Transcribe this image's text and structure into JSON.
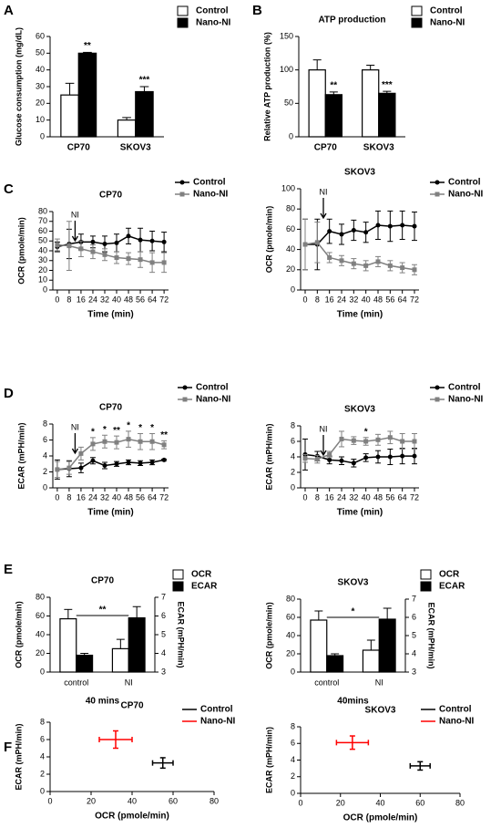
{
  "chart_data": [
    {
      "type": "bar",
      "panel": "A",
      "ylabel": "Glucose consumption (mg/dL)",
      "categories": [
        "CP70",
        "SKOV3"
      ],
      "series": [
        {
          "name": "Control",
          "color": "#ffffff",
          "values": [
            25,
            10
          ],
          "errors": [
            7,
            1.5
          ],
          "annotations": [
            null,
            null
          ]
        },
        {
          "name": "Nano-NI",
          "color": "#000000",
          "values": [
            50,
            27
          ],
          "errors": [
            0.5,
            3
          ],
          "annotations": [
            "**",
            "***"
          ]
        }
      ],
      "ylim": [
        0,
        60
      ],
      "yticks": [
        0,
        10,
        20,
        30,
        40,
        50,
        60
      ]
    },
    {
      "type": "bar",
      "panel": "B",
      "title": "ATP production",
      "ylabel": "Relative ATP production (%)",
      "categories": [
        "CP70",
        "SKOV3"
      ],
      "series": [
        {
          "name": "Control",
          "color": "#ffffff",
          "values": [
            100,
            100
          ],
          "errors": [
            15,
            7
          ],
          "annotations": [
            null,
            null
          ]
        },
        {
          "name": "Nano-NI",
          "color": "#000000",
          "values": [
            63,
            65
          ],
          "errors": [
            4,
            3
          ],
          "annotations": [
            "**",
            "***"
          ]
        }
      ],
      "ylim": [
        0,
        150
      ],
      "yticks": [
        0,
        50,
        100,
        150
      ]
    },
    {
      "type": "line",
      "panel": "C",
      "title": "CP70",
      "xlabel": "Time (min)",
      "ylabel": "OCR (pmole/min)",
      "x": [
        0,
        8,
        16,
        24,
        32,
        40,
        48,
        56,
        64,
        72
      ],
      "annotation": {
        "text": "NI",
        "x": 12
      },
      "series": [
        {
          "name": "Control",
          "color": "#000000",
          "marker": "circle",
          "values": [
            44,
            47,
            49,
            49,
            47,
            48,
            55,
            51,
            50,
            49
          ],
          "errors": [
            5,
            15,
            8,
            6,
            8,
            9,
            8,
            12,
            10,
            10
          ]
        },
        {
          "name": "Nano-NI",
          "color": "#808080",
          "marker": "square",
          "values": [
            46,
            45,
            42,
            39,
            36,
            33,
            32,
            31,
            28,
            28
          ],
          "errors": [
            6,
            25,
            8,
            7,
            6,
            6,
            6,
            8,
            10,
            10
          ]
        }
      ],
      "xlim": [
        -3,
        75
      ],
      "xticks": [
        0,
        8,
        16,
        24,
        32,
        40,
        48,
        56,
        64,
        72
      ],
      "ylim": [
        0,
        80
      ],
      "yticks": [
        0,
        10,
        20,
        30,
        40,
        50,
        60,
        70,
        80
      ]
    },
    {
      "type": "line",
      "title": "SKOV3",
      "xlabel": "Time (min)",
      "ylabel": "OCR (pmole/min)",
      "x": [
        0,
        8,
        16,
        24,
        32,
        40,
        48,
        56,
        64,
        72
      ],
      "annotation": {
        "text": "NI",
        "x": 12
      },
      "series": [
        {
          "name": "Control",
          "color": "#000000",
          "marker": "circle",
          "values": [
            45,
            45,
            58,
            55,
            59,
            57,
            64,
            63,
            64,
            63
          ],
          "errors": [
            25,
            25,
            12,
            10,
            10,
            10,
            14,
            15,
            14,
            14
          ]
        },
        {
          "name": "Nano-NI",
          "color": "#808080",
          "marker": "square",
          "values": [
            45,
            47,
            32,
            29,
            26,
            24,
            28,
            24,
            22,
            20
          ],
          "errors": [
            25,
            20,
            5,
            5,
            5,
            5,
            5,
            5,
            5,
            5
          ]
        }
      ],
      "xlim": [
        -3,
        75
      ],
      "xticks": [
        0,
        8,
        16,
        24,
        32,
        40,
        48,
        56,
        64,
        72
      ],
      "ylim": [
        0,
        100
      ],
      "yticks": [
        0,
        20,
        40,
        60,
        80,
        100
      ]
    },
    {
      "type": "line",
      "panel": "D",
      "title": "CP70",
      "xlabel": "Time (min)",
      "ylabel": "ECAR (mPH/min)",
      "x": [
        0,
        8,
        16,
        24,
        32,
        40,
        48,
        56,
        64,
        72
      ],
      "annotation": {
        "text": "NI",
        "x": 12
      },
      "series": [
        {
          "name": "Control",
          "color": "#000000",
          "marker": "circle",
          "values": [
            2.3,
            2.4,
            2.5,
            3.4,
            2.8,
            3.0,
            3.2,
            3.1,
            3.2,
            3.5
          ],
          "errors": [
            1.2,
            1.0,
            0.6,
            0.4,
            0.4,
            0.3,
            0.3,
            0.3,
            0.3,
            0.1
          ],
          "annotations": [
            null,
            null,
            null,
            null,
            null,
            null,
            null,
            null,
            null,
            null
          ]
        },
        {
          "name": "Nano-NI",
          "color": "#808080",
          "marker": "square",
          "values": [
            2.3,
            2.5,
            4.3,
            5.5,
            5.8,
            5.7,
            6.1,
            5.8,
            5.8,
            5.4
          ],
          "errors": [
            1.0,
            0.8,
            0.8,
            0.8,
            0.8,
            0.8,
            1.0,
            1.0,
            1.0,
            0.5
          ],
          "annotations": [
            null,
            null,
            null,
            "*",
            "*",
            "**",
            "*",
            "*",
            "*",
            "**"
          ]
        }
      ],
      "xlim": [
        -3,
        75
      ],
      "xticks": [
        0,
        8,
        16,
        24,
        32,
        40,
        48,
        56,
        64,
        72
      ],
      "ylim": [
        0,
        8
      ],
      "yticks": [
        0,
        2,
        4,
        6,
        8
      ]
    },
    {
      "type": "line",
      "title": "SKOV3",
      "xlabel": "Time (min)",
      "ylabel": "ECAR (mPH/min)",
      "x": [
        0,
        8,
        16,
        24,
        32,
        40,
        48,
        56,
        64,
        72
      ],
      "annotation": {
        "text": "NI",
        "x": 12
      },
      "series": [
        {
          "name": "Control",
          "color": "#000000",
          "marker": "circle",
          "values": [
            4.3,
            4.1,
            3.6,
            3.5,
            3.2,
            3.9,
            4.0,
            4.0,
            4.1,
            4.1
          ],
          "errors": [
            2.0,
            0.6,
            0.5,
            0.5,
            0.5,
            0.5,
            0.8,
            1.0,
            1.0,
            1.0
          ],
          "annotations": [
            null,
            null,
            null,
            null,
            null,
            null,
            null,
            null,
            null,
            null
          ]
        },
        {
          "name": "Nano-NI",
          "color": "#808080",
          "marker": "square",
          "values": [
            3.8,
            3.7,
            4.3,
            6.3,
            6.1,
            6.0,
            6.2,
            6.5,
            6.0,
            6.0
          ],
          "errors": [
            0.5,
            0.5,
            0.4,
            1.0,
            0.5,
            0.5,
            0.7,
            0.8,
            1.0,
            1.0
          ],
          "annotations": [
            null,
            null,
            null,
            null,
            null,
            "*",
            null,
            null,
            null,
            null
          ]
        }
      ],
      "xlim": [
        -3,
        75
      ],
      "xticks": [
        0,
        8,
        16,
        24,
        32,
        40,
        48,
        56,
        64,
        72
      ],
      "ylim": [
        0,
        8
      ],
      "yticks": [
        0,
        2,
        4,
        6,
        8
      ]
    },
    {
      "type": "bar",
      "panel": "E",
      "title": "CP70",
      "xlabel": "40 mins",
      "ylabel": "OCR (pmole/min)",
      "y2label": "ECAR (mPH/min)",
      "bracket": "**",
      "categories": [
        "control",
        "NI"
      ],
      "series": [
        {
          "name": "OCR",
          "color": "#ffffff",
          "values": [
            57,
            25
          ],
          "errors": [
            10,
            10
          ]
        },
        {
          "name": "ECAR",
          "color": "#000000",
          "axis": "y2",
          "values": [
            3.9,
            5.9
          ],
          "errors": [
            0.1,
            0.6
          ]
        }
      ],
      "ylim": [
        0,
        80
      ],
      "yticks": [
        0,
        20,
        40,
        60,
        80
      ],
      "y2lim": [
        3,
        7
      ],
      "y2ticks": [
        3,
        4,
        5,
        6,
        7
      ]
    },
    {
      "type": "bar",
      "title": "SKOV3",
      "xlabel": "40mins",
      "ylabel": "OCR (pmole/min)",
      "y2label": "ECAR (mPH/min)",
      "bracket": "*",
      "categories": [
        "control",
        "NI"
      ],
      "series": [
        {
          "name": "OCR",
          "color": "#ffffff",
          "values": [
            57,
            24
          ],
          "errors": [
            10,
            11
          ]
        },
        {
          "name": "ECAR",
          "color": "#000000",
          "axis": "y2",
          "values": [
            3.9,
            5.9
          ],
          "errors": [
            0.1,
            0.6
          ]
        }
      ],
      "ylim": [
        0,
        80
      ],
      "yticks": [
        0,
        20,
        40,
        60,
        80
      ],
      "y2lim": [
        3,
        7
      ],
      "y2ticks": [
        3,
        4,
        5,
        6,
        7
      ]
    },
    {
      "type": "scatter",
      "panel": "F",
      "title": "CP70",
      "xlabel": "OCR (pmole/min)",
      "ylabel": "ECAR (mPH/min)",
      "series": [
        {
          "name": "Control",
          "color": "#000000",
          "x": [
            55
          ],
          "values": [
            3.3
          ],
          "xerr": [
            5
          ],
          "yerr": [
            0.6
          ]
        },
        {
          "name": "Nano-NI",
          "color": "#ff0000",
          "x": [
            32
          ],
          "values": [
            6.0
          ],
          "xerr": [
            8
          ],
          "yerr": [
            1.0
          ]
        }
      ],
      "xlim": [
        0,
        80
      ],
      "xticks": [
        0,
        20,
        40,
        60,
        80
      ],
      "ylim": [
        0,
        8
      ],
      "yticks": [
        0,
        2,
        4,
        6,
        8
      ]
    },
    {
      "type": "scatter",
      "title": "SKOV3",
      "xlabel": "OCR (pmole/min)",
      "ylabel": "ECAR (mPH/min)",
      "series": [
        {
          "name": "Control",
          "color": "#000000",
          "x": [
            60
          ],
          "values": [
            3.3
          ],
          "xerr": [
            5
          ],
          "yerr": [
            0.5
          ]
        },
        {
          "name": "Nano-NI",
          "color": "#ff0000",
          "x": [
            26
          ],
          "values": [
            6.1
          ],
          "xerr": [
            8
          ],
          "yerr": [
            0.8
          ]
        }
      ],
      "xlim": [
        0,
        80
      ],
      "xticks": [
        0,
        20,
        40,
        60,
        80
      ],
      "ylim": [
        0,
        8
      ],
      "yticks": [
        0,
        2,
        4,
        6,
        8
      ]
    }
  ]
}
